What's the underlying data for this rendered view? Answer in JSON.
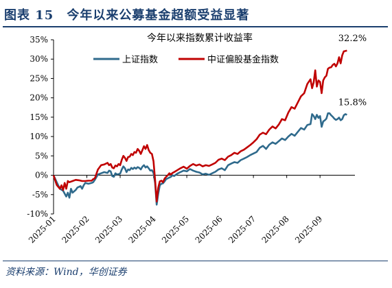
{
  "figure": {
    "title": "图表 15　今年以来公募基金超额受益显著",
    "source": "资料来源：Wind，华创证券"
  },
  "colors": {
    "header": "#1a3e6e",
    "sse_index": "#2f6a8c",
    "csi_fund_index": "#c00000"
  },
  "chart_data": {
    "type": "line",
    "title": "今年以来指数累计收益率",
    "xlabel": "",
    "ylabel": "",
    "ylim": [
      -10,
      35
    ],
    "yticks": [
      -10,
      -5,
      0,
      5,
      10,
      15,
      20,
      25,
      30,
      35
    ],
    "ytick_labels": [
      "-10%",
      "-5%",
      "0%",
      "5%",
      "10%",
      "15%",
      "20%",
      "25%",
      "30%",
      "35%"
    ],
    "xlim": [
      0,
      190
    ],
    "xtick_positions": [
      0,
      21,
      42,
      63,
      84,
      105,
      126,
      147,
      168
    ],
    "xtick_labels": [
      "2025-01",
      "2025-02",
      "2025-03",
      "2025-04",
      "2025-05",
      "2025-06",
      "2025-07",
      "2025-08",
      "2025-09"
    ],
    "legend_position": "top",
    "grid": false,
    "series": [
      {
        "name": "上证指数",
        "color": "#2f6a8c",
        "end_label": "15.8%",
        "points": [
          [
            0,
            0
          ],
          [
            2,
            -1.8
          ],
          [
            4,
            -3.5
          ],
          [
            6,
            -4
          ],
          [
            8,
            -5.5
          ],
          [
            9,
            -4.5
          ],
          [
            10,
            -5.8
          ],
          [
            11,
            -3.5
          ],
          [
            12,
            -4.5
          ],
          [
            14,
            -3.8
          ],
          [
            15,
            -3.2
          ],
          [
            17,
            -2.8
          ],
          [
            18,
            -3.5
          ],
          [
            19,
            -2.6
          ],
          [
            20,
            -2
          ],
          [
            22,
            -2.2
          ],
          [
            24,
            -2
          ],
          [
            25,
            -1.8
          ],
          [
            26,
            -1.2
          ],
          [
            28,
            0.2
          ],
          [
            30,
            0.5
          ],
          [
            32,
            0.8
          ],
          [
            34,
            0.6
          ],
          [
            35,
            1.2
          ],
          [
            36,
            1
          ],
          [
            37,
            -0.2
          ],
          [
            38,
            -0.4
          ],
          [
            39,
            0.5
          ],
          [
            40,
            0.2
          ],
          [
            41,
            0.3
          ],
          [
            42,
            0.4
          ],
          [
            43,
            1.5
          ],
          [
            44,
            2.3
          ],
          [
            45,
            1.8
          ],
          [
            46,
            0.8
          ],
          [
            47,
            1.5
          ],
          [
            48,
            1.3
          ],
          [
            49,
            1.9
          ],
          [
            50,
            1.6
          ],
          [
            51,
            2
          ],
          [
            52,
            1.7
          ],
          [
            53,
            2.1
          ],
          [
            54,
            1.9
          ],
          [
            55,
            1.5
          ],
          [
            56,
            2.2
          ],
          [
            57,
            2.6
          ],
          [
            58,
            2
          ],
          [
            59,
            2.3
          ],
          [
            60,
            1.8
          ],
          [
            61,
            1.2
          ],
          [
            62,
            1.3
          ],
          [
            63,
            0.6
          ],
          [
            64,
            -2
          ],
          [
            65,
            -7.6
          ],
          [
            66,
            -4.8
          ],
          [
            67,
            -2.6
          ],
          [
            68,
            -2.2
          ],
          [
            69,
            -2.1
          ],
          [
            70,
            -1.6
          ],
          [
            71,
            -1
          ],
          [
            72,
            -0.8
          ],
          [
            73,
            -0.6
          ],
          [
            74,
            -0.4
          ],
          [
            75,
            0
          ],
          [
            76,
            -0.2
          ],
          [
            78,
            0.4
          ],
          [
            80,
            0.8
          ],
          [
            82,
            1.2
          ],
          [
            83,
            1.1
          ],
          [
            84,
            1
          ],
          [
            86,
            1.6
          ],
          [
            88,
            1.2
          ],
          [
            90,
            0.9
          ],
          [
            92,
            0.7
          ],
          [
            94,
            0.2
          ],
          [
            96,
            0.4
          ],
          [
            98,
            0.1
          ],
          [
            100,
            0.5
          ],
          [
            102,
            0.9
          ],
          [
            104,
            1.5
          ],
          [
            106,
            1.8
          ],
          [
            108,
            1.3
          ],
          [
            110,
            2.6
          ],
          [
            112,
            3
          ],
          [
            114,
            3.4
          ],
          [
            116,
            3.2
          ],
          [
            118,
            3.9
          ],
          [
            120,
            4.3
          ],
          [
            122,
            4.7
          ],
          [
            124,
            5.2
          ],
          [
            126,
            5.6
          ],
          [
            128,
            6
          ],
          [
            130,
            7.1
          ],
          [
            132,
            7.6
          ],
          [
            134,
            6.8
          ],
          [
            136,
            7.9
          ],
          [
            138,
            8.5
          ],
          [
            140,
            8.1
          ],
          [
            142,
            8.8
          ],
          [
            144,
            9.5
          ],
          [
            146,
            9.1
          ],
          [
            148,
            10
          ],
          [
            150,
            10.7
          ],
          [
            152,
            10.2
          ],
          [
            154,
            11.2
          ],
          [
            156,
            12.2
          ],
          [
            158,
            11.8
          ],
          [
            160,
            13
          ],
          [
            162,
            13.2
          ],
          [
            163,
            15.8
          ],
          [
            164,
            15.3
          ],
          [
            165,
            14.5
          ],
          [
            166,
            15.6
          ],
          [
            167,
            14.8
          ],
          [
            168,
            15.3
          ],
          [
            169,
            12.5
          ],
          [
            170,
            13.9
          ],
          [
            171,
            14.2
          ],
          [
            172,
            14.6
          ],
          [
            173,
            16
          ],
          [
            174,
            16
          ],
          [
            175,
            15.5
          ],
          [
            176,
            15.1
          ],
          [
            177,
            14.6
          ],
          [
            178,
            14.3
          ],
          [
            179,
            14.5
          ],
          [
            180,
            14.9
          ],
          [
            181,
            14.2
          ],
          [
            182,
            14.5
          ],
          [
            183,
            15.5
          ],
          [
            184,
            15.8
          ],
          [
            185,
            15.6
          ]
        ]
      },
      {
        "name": "中证偏股基金指数",
        "color": "#c00000",
        "end_label": "32.2%",
        "points": [
          [
            0,
            0
          ],
          [
            2,
            -2.5
          ],
          [
            4,
            -3.5
          ],
          [
            5,
            -2.6
          ],
          [
            6,
            -3.8
          ],
          [
            7,
            -2
          ],
          [
            8,
            -3.5
          ],
          [
            9,
            -1.5
          ],
          [
            10,
            -1.8
          ],
          [
            12,
            -1.5
          ],
          [
            14,
            -1.2
          ],
          [
            16,
            -1.3
          ],
          [
            18,
            -1.5
          ],
          [
            20,
            -1.5
          ],
          [
            22,
            -1.4
          ],
          [
            24,
            -1.4
          ],
          [
            25,
            -1
          ],
          [
            26,
            -0.8
          ],
          [
            28,
            1.5
          ],
          [
            30,
            2.6
          ],
          [
            32,
            2.8
          ],
          [
            34,
            3.2
          ],
          [
            35,
            2.6
          ],
          [
            36,
            2.9
          ],
          [
            37,
            2
          ],
          [
            38,
            1.8
          ],
          [
            39,
            2.5
          ],
          [
            40,
            2.3
          ],
          [
            41,
            2.9
          ],
          [
            42,
            2.6
          ],
          [
            43,
            4
          ],
          [
            44,
            5
          ],
          [
            45,
            4.5
          ],
          [
            46,
            3.7
          ],
          [
            47,
            4.7
          ],
          [
            48,
            4.8
          ],
          [
            49,
            5.5
          ],
          [
            50,
            5.2
          ],
          [
            51,
            6
          ],
          [
            52,
            5.8
          ],
          [
            53,
            6.8
          ],
          [
            54,
            6.3
          ],
          [
            55,
            5.5
          ],
          [
            56,
            6.5
          ],
          [
            57,
            7.5
          ],
          [
            58,
            6.8
          ],
          [
            59,
            7.8
          ],
          [
            60,
            6.5
          ],
          [
            61,
            5.8
          ],
          [
            62,
            5.5
          ],
          [
            63,
            3.6
          ],
          [
            64,
            -1.2
          ],
          [
            65,
            -6.8
          ],
          [
            66,
            -3.2
          ],
          [
            67,
            -1.6
          ],
          [
            68,
            -1.4
          ],
          [
            69,
            -1.8
          ],
          [
            70,
            -0.9
          ],
          [
            71,
            -0.4
          ],
          [
            72,
            0
          ],
          [
            73,
            0.5
          ],
          [
            74,
            0.2
          ],
          [
            75,
            0.6
          ],
          [
            76,
            0.8
          ],
          [
            78,
            1.3
          ],
          [
            80,
            1.8
          ],
          [
            82,
            2.2
          ],
          [
            84,
            1.7
          ],
          [
            86,
            2.4
          ],
          [
            88,
            2.9
          ],
          [
            90,
            2.5
          ],
          [
            92,
            2.8
          ],
          [
            94,
            2.3
          ],
          [
            96,
            2.6
          ],
          [
            98,
            2.4
          ],
          [
            100,
            2.8
          ],
          [
            102,
            3.2
          ],
          [
            104,
            4
          ],
          [
            106,
            4.3
          ],
          [
            108,
            3.9
          ],
          [
            110,
            4.8
          ],
          [
            112,
            5.2
          ],
          [
            114,
            5.8
          ],
          [
            116,
            5.5
          ],
          [
            118,
            6.2
          ],
          [
            120,
            6.6
          ],
          [
            122,
            7.2
          ],
          [
            124,
            7.8
          ],
          [
            126,
            8.5
          ],
          [
            128,
            9.3
          ],
          [
            130,
            10.5
          ],
          [
            132,
            11
          ],
          [
            134,
            10.6
          ],
          [
            136,
            11.8
          ],
          [
            138,
            12.6
          ],
          [
            140,
            12.1
          ],
          [
            142,
            13.1
          ],
          [
            144,
            14.5
          ],
          [
            146,
            14.2
          ],
          [
            148,
            16.2
          ],
          [
            150,
            17.6
          ],
          [
            152,
            17.2
          ],
          [
            154,
            18.8
          ],
          [
            156,
            20.4
          ],
          [
            158,
            21.2
          ],
          [
            160,
            23.6
          ],
          [
            162,
            24.8
          ],
          [
            163,
            22.5
          ],
          [
            164,
            24
          ],
          [
            165,
            27.1
          ],
          [
            166,
            22.9
          ],
          [
            167,
            24.5
          ],
          [
            168,
            24.1
          ],
          [
            169,
            21.2
          ],
          [
            170,
            24.5
          ],
          [
            171,
            25.3
          ],
          [
            172,
            25.7
          ],
          [
            173,
            27.5
          ],
          [
            174,
            27.8
          ],
          [
            175,
            27.9
          ],
          [
            176,
            28.5
          ],
          [
            177,
            28.8
          ],
          [
            178,
            28.1
          ],
          [
            179,
            28.9
          ],
          [
            180,
            30.5
          ],
          [
            181,
            28.9
          ],
          [
            182,
            31
          ],
          [
            183,
            32
          ],
          [
            184,
            32.1
          ],
          [
            185,
            32.2
          ]
        ]
      }
    ]
  }
}
